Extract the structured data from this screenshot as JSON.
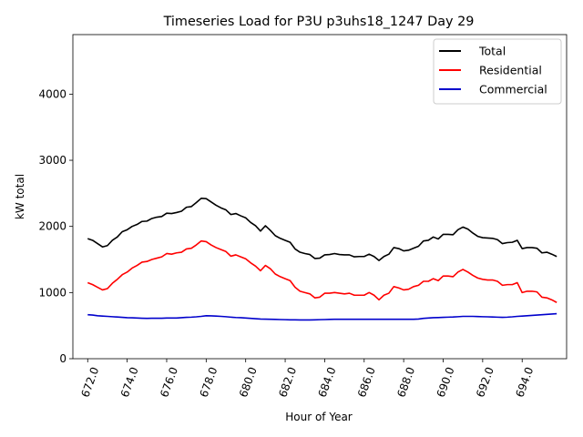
{
  "chart_data": {
    "type": "line",
    "title": "Timeseries Load for P3U p3uhs18_1247  Day 29",
    "xlabel": "Hour of Year",
    "ylabel": "kW total",
    "xlim": [
      671.25,
      696.25
    ],
    "ylim": [
      0,
      4900
    ],
    "xticks": [
      672,
      674,
      676,
      678,
      680,
      682,
      684,
      686,
      688,
      690,
      692,
      694
    ],
    "xtick_labels": [
      "672.0",
      "674.0",
      "676.0",
      "678.0",
      "680.0",
      "682.0",
      "684.0",
      "686.0",
      "688.0",
      "690.0",
      "692.0",
      "694.0"
    ],
    "xtick_rotation": "70 degrees",
    "yticks": [
      0,
      1000,
      2000,
      3000,
      4000
    ],
    "ytick_labels": [
      "0",
      "1000",
      "2000",
      "3000",
      "4000"
    ],
    "grid": false,
    "legend_position": "top-right",
    "x": [
      672.0,
      672.25,
      672.5,
      672.75,
      673.0,
      673.25,
      673.5,
      673.75,
      674.0,
      674.25,
      674.5,
      674.75,
      675.0,
      675.25,
      675.5,
      675.75,
      676.0,
      676.25,
      676.5,
      676.75,
      677.0,
      677.25,
      677.5,
      677.75,
      678.0,
      678.25,
      678.5,
      678.75,
      679.0,
      679.25,
      679.5,
      679.75,
      680.0,
      680.25,
      680.5,
      680.75,
      681.0,
      681.25,
      681.5,
      681.75,
      682.0,
      682.25,
      682.5,
      682.75,
      683.0,
      683.25,
      683.5,
      683.75,
      684.0,
      684.25,
      684.5,
      684.75,
      685.0,
      685.25,
      685.5,
      685.75,
      686.0,
      686.25,
      686.5,
      686.75,
      687.0,
      687.25,
      687.5,
      687.75,
      688.0,
      688.25,
      688.5,
      688.75,
      689.0,
      689.25,
      689.5,
      689.75,
      690.0,
      690.25,
      690.5,
      690.75,
      691.0,
      691.25,
      691.5,
      691.75,
      692.0,
      692.25,
      692.5,
      692.75,
      693.0,
      693.25,
      693.5,
      693.75,
      694.0,
      694.25,
      694.5,
      694.75,
      695.0,
      695.25,
      695.5,
      695.75
    ],
    "series": [
      {
        "name": "Total",
        "color": "#000000",
        "values": [
          1815,
          1790,
          1740,
          1690,
          1710,
          1790,
          1840,
          1920,
          1950,
          2000,
          2030,
          2075,
          2080,
          2120,
          2140,
          2150,
          2200,
          2195,
          2210,
          2230,
          2290,
          2300,
          2360,
          2425,
          2420,
          2370,
          2320,
          2280,
          2250,
          2180,
          2195,
          2160,
          2130,
          2060,
          2010,
          1930,
          2010,
          1940,
          1860,
          1820,
          1790,
          1760,
          1660,
          1610,
          1590,
          1575,
          1515,
          1520,
          1570,
          1575,
          1590,
          1575,
          1570,
          1570,
          1540,
          1545,
          1545,
          1580,
          1545,
          1485,
          1545,
          1580,
          1680,
          1665,
          1630,
          1640,
          1670,
          1700,
          1780,
          1790,
          1840,
          1810,
          1880,
          1880,
          1875,
          1950,
          1990,
          1960,
          1900,
          1850,
          1830,
          1825,
          1820,
          1800,
          1740,
          1755,
          1760,
          1790,
          1665,
          1680,
          1680,
          1670,
          1600,
          1610,
          1580,
          1545
        ]
      },
      {
        "name": "Residential",
        "color": "#ff0000",
        "values": [
          1150,
          1120,
          1080,
          1040,
          1060,
          1140,
          1200,
          1270,
          1310,
          1370,
          1410,
          1460,
          1470,
          1500,
          1520,
          1540,
          1590,
          1580,
          1600,
          1610,
          1660,
          1670,
          1720,
          1780,
          1770,
          1720,
          1680,
          1650,
          1620,
          1550,
          1570,
          1540,
          1510,
          1450,
          1400,
          1330,
          1410,
          1360,
          1280,
          1240,
          1210,
          1180,
          1080,
          1020,
          1000,
          980,
          920,
          930,
          990,
          990,
          1000,
          990,
          980,
          990,
          960,
          960,
          960,
          1000,
          960,
          890,
          960,
          990,
          1090,
          1070,
          1040,
          1050,
          1090,
          1110,
          1170,
          1170,
          1210,
          1180,
          1250,
          1250,
          1240,
          1310,
          1350,
          1310,
          1260,
          1220,
          1200,
          1190,
          1190,
          1170,
          1110,
          1120,
          1120,
          1150,
          1000,
          1020,
          1020,
          1010,
          930,
          920,
          890,
          850
        ]
      },
      {
        "name": "Commercial",
        "color": "#0000cc",
        "values": [
          665,
          660,
          650,
          645,
          640,
          635,
          630,
          625,
          620,
          618,
          615,
          612,
          610,
          612,
          612,
          612,
          615,
          615,
          615,
          620,
          625,
          628,
          633,
          640,
          650,
          648,
          645,
          640,
          635,
          628,
          623,
          620,
          615,
          610,
          605,
          600,
          598,
          596,
          594,
          592,
          590,
          588,
          588,
          586,
          586,
          586,
          588,
          590,
          592,
          594,
          596,
          596,
          596,
          596,
          596,
          596,
          596,
          596,
          596,
          596,
          596,
          596,
          596,
          596,
          596,
          596,
          596,
          600,
          610,
          615,
          620,
          622,
          625,
          628,
          630,
          635,
          640,
          640,
          640,
          638,
          635,
          633,
          630,
          628,
          625,
          628,
          633,
          640,
          645,
          650,
          655,
          660,
          665,
          670,
          675,
          680
        ]
      }
    ]
  }
}
